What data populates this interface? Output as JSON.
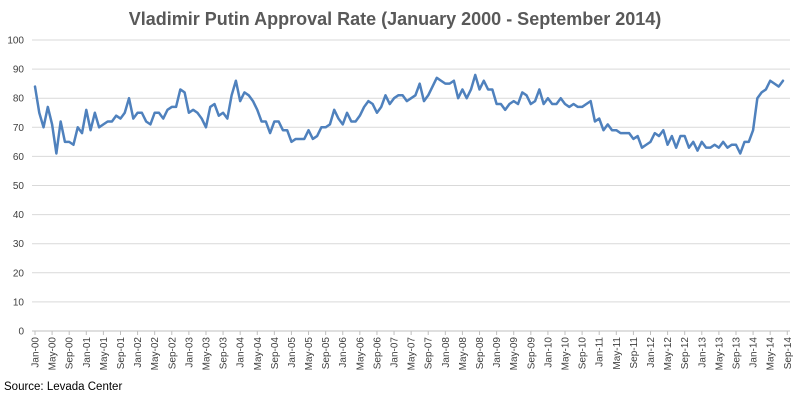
{
  "source_label": "Source: Levada Center",
  "chart_data": {
    "type": "line",
    "title": "Vladimir Putin Approval Rate (January 2000 - September 2014)",
    "xlabel": "",
    "ylabel": "",
    "ylim": [
      0,
      100
    ],
    "yticks": [
      0,
      10,
      20,
      30,
      40,
      50,
      60,
      70,
      80,
      90,
      100
    ],
    "grid": true,
    "legend": "none",
    "line_color": "#4f81bd",
    "x_tick_labels": [
      "Jan-00",
      "May-00",
      "Sep-00",
      "Jan-01",
      "May-01",
      "Sep-01",
      "Jan-02",
      "May-02",
      "Sep-02",
      "Jan-03",
      "May-03",
      "Sep-03",
      "Jan-04",
      "May-04",
      "Sep-04",
      "Jan-05",
      "May-05",
      "Sep-05",
      "Jan-06",
      "May-06",
      "Sep-06",
      "Jan-07",
      "May-07",
      "Sep-07",
      "Jan-08",
      "May-08",
      "Sep-08",
      "Jan-09",
      "May-09",
      "Sep-09",
      "Jan-10",
      "May-10",
      "Sep-10",
      "Jan-11",
      "May-11",
      "Sep-11",
      "Jan-12",
      "May-12",
      "Sep-12",
      "Jan-13",
      "May-13",
      "Sep-13",
      "Jan-14",
      "May-14",
      "Sep-14"
    ],
    "series": [
      {
        "values": [
          84,
          75,
          70,
          77,
          71,
          61,
          72,
          65,
          65,
          64,
          70,
          68,
          76,
          69,
          75,
          70,
          71,
          72,
          72,
          74,
          73,
          75,
          80,
          73,
          75,
          75,
          72,
          71,
          75,
          75,
          73,
          76,
          77,
          77,
          83,
          82,
          75,
          76,
          75,
          73,
          70,
          77,
          78,
          74,
          75,
          73,
          81,
          86,
          79,
          82,
          81,
          79,
          76,
          72,
          72,
          68,
          72,
          72,
          69,
          69,
          65,
          66,
          66,
          66,
          69,
          66,
          67,
          70,
          70,
          71,
          76,
          73,
          71,
          75,
          72,
          72,
          74,
          77,
          79,
          78,
          75,
          77,
          81,
          78,
          80,
          81,
          81,
          79,
          80,
          81,
          85,
          79,
          81,
          84,
          87,
          86,
          85,
          85,
          86,
          80,
          83,
          80,
          83,
          88,
          83,
          86,
          83,
          83,
          78,
          78,
          76,
          78,
          79,
          78,
          82,
          81,
          78,
          79,
          83,
          78,
          80,
          78,
          78,
          80,
          78,
          77,
          78,
          77,
          77,
          78,
          79,
          72,
          73,
          69,
          71,
          69,
          69,
          68,
          68,
          68,
          66,
          67,
          63,
          64,
          65,
          68,
          67,
          69,
          64,
          67,
          63,
          67,
          67,
          63,
          65,
          62,
          65,
          63,
          63,
          64,
          63,
          65,
          63,
          64,
          64,
          61,
          65,
          65,
          69,
          80,
          82,
          83,
          86,
          85,
          84,
          86
        ]
      }
    ]
  }
}
